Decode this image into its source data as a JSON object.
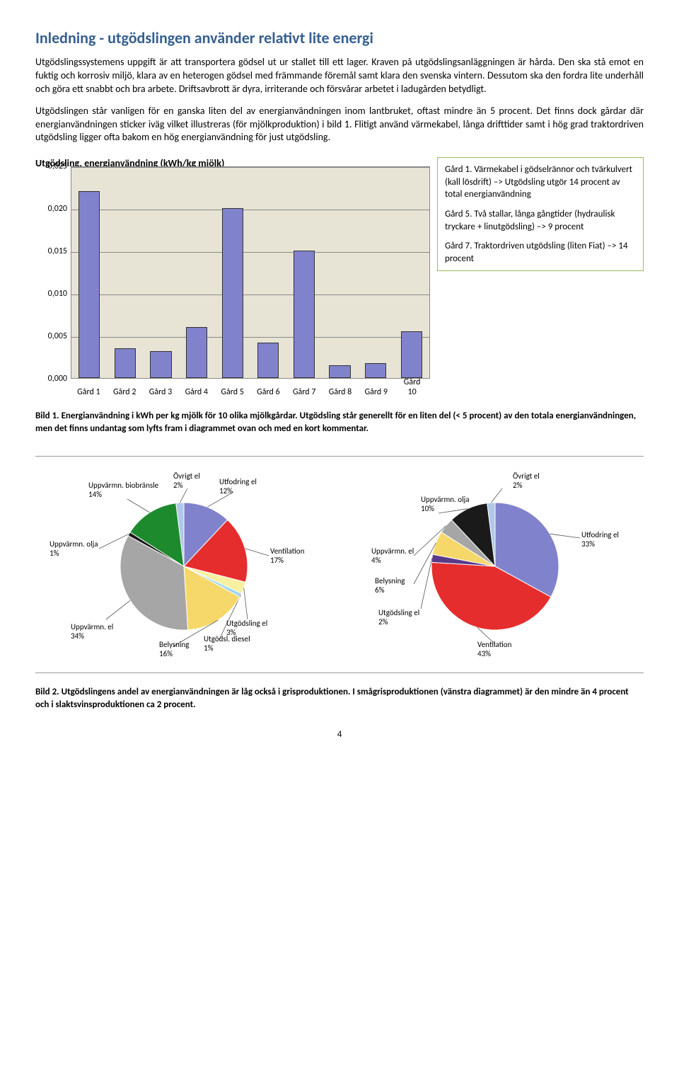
{
  "heading": "Inledning - utgödslingen använder relativt lite energi",
  "para1": "Utgödslingssystemens uppgift är att transportera gödsel ut ur stallet till ett lager. Kraven på utgöds­lingsanläggningen är hårda. Den ska stå emot en fuktig och korrosiv miljö, klara av en heterogen gödsel med främmande föremål samt klara den svenska vintern. Dessutom ska den fordra lite under­håll och göra ett snabbt och bra arbete. Driftsavbrott är dyra, irriterande och försvårar arbetet i ladugården betydligt.",
  "para2": "Utgödslingen står vanligen för en ganska liten del av energianvändningen inom lantbruket, oftast mindre än 5 procent. Det finns dock gårdar där energianvändningen sticker iväg vilket illustreras (för mjölkproduktion) i bild 1. Flitigt använd värmekabel, långa drifttider samt i hög grad traktordriven utgödsling ligger ofta bakom en hög energianvändning för just utgödsling.",
  "barChart": {
    "title": "Utgödsling, energianvändning (kWh/kg mjölk)",
    "ylim": [
      0,
      0.025
    ],
    "ytick_step": 0.005,
    "yticks": [
      "0,000",
      "0,005",
      "0,010",
      "0,015",
      "0,020",
      "0,025"
    ],
    "categories": [
      "Gård 1",
      "Gård 2",
      "Gård 3",
      "Gård 4",
      "Gård 5",
      "Gård 6",
      "Gård 7",
      "Gård 8",
      "Gård 9",
      "Gård 10"
    ],
    "values": [
      0.022,
      0.0035,
      0.0032,
      0.006,
      0.02,
      0.0042,
      0.015,
      0.0015,
      0.0018,
      0.0055
    ],
    "bar_color": "#8182cc",
    "background_color": "#e8e4d5",
    "grid_color": "#888888"
  },
  "sideBox": {
    "p1": "Gård 1. Värmekabel i gödsel­rännor och tvärkulvert (kall lösdrift) –> Utgödsling utgör 14 procent av total energian­vändning",
    "p2": "Gård 5. Två stallar, långa gångtider (hydraulisk tryckare + linutgödsling) –> 9 procent",
    "p3": "Gård 7. Traktordriven utgöds­ling (liten Fiat) –> 14 procent"
  },
  "caption1_bold": "Bild 1. Energianvändning i kWh per kg mjölk för 10 olika mjölkgårdar. Utgödsling står generellt för en liten del (< 5 procent) av den totala energianvändningen, men det finns undantag som lyfts fram i diagrammet ovan och med en kort kommentar.",
  "pie1": {
    "slices": [
      {
        "label": "Utfodring el",
        "value": 12,
        "color": "#8182cc"
      },
      {
        "label": "Ventilation",
        "value": 17,
        "color": "#e62d2d"
      },
      {
        "label": "Utgödsling el",
        "value": 3,
        "color": "#f6f0a0"
      },
      {
        "label": "Utgödsl. diesel",
        "value": 1,
        "color": "#a0d8e8"
      },
      {
        "label": "Belysning",
        "value": 16,
        "color": "#f6d86a"
      },
      {
        "label": "Uppvärmn. el",
        "value": 34,
        "color": "#a6a6a6"
      },
      {
        "label": "Uppvärmn. olja",
        "value": 1,
        "color": "#1a1a1a"
      },
      {
        "label": "Uppvärmn. biobränsle",
        "value": 14,
        "color": "#1e8a2e"
      },
      {
        "label": "Övrigt el",
        "value": 2,
        "color": "#b0c8e8"
      }
    ]
  },
  "pie2": {
    "slices": [
      {
        "label": "Utfodring el",
        "value": 33,
        "color": "#8182cc"
      },
      {
        "label": "Ventilation",
        "value": 43,
        "color": "#e62d2d"
      },
      {
        "label": "Utgödsling el",
        "value": 2,
        "color": "#5a3a8a"
      },
      {
        "label": "Belysning",
        "value": 6,
        "color": "#f6d86a"
      },
      {
        "label": "Uppvärmn. el",
        "value": 4,
        "color": "#a6a6a6"
      },
      {
        "label": "Uppvärmn. olja",
        "value": 10,
        "color": "#1a1a1a"
      },
      {
        "label": "Övrigt el",
        "value": 2,
        "color": "#b0c8e8"
      }
    ]
  },
  "caption2_bold": "Bild 2. Utgödslingens andel av energianvändningen är låg också i grisproduktionen. I smågrisproduktionen (vänstra diagrammet) är den mindre än 4 procent och i slaktsvinsproduktionen ca 2 procent.",
  "pagenum": "4"
}
